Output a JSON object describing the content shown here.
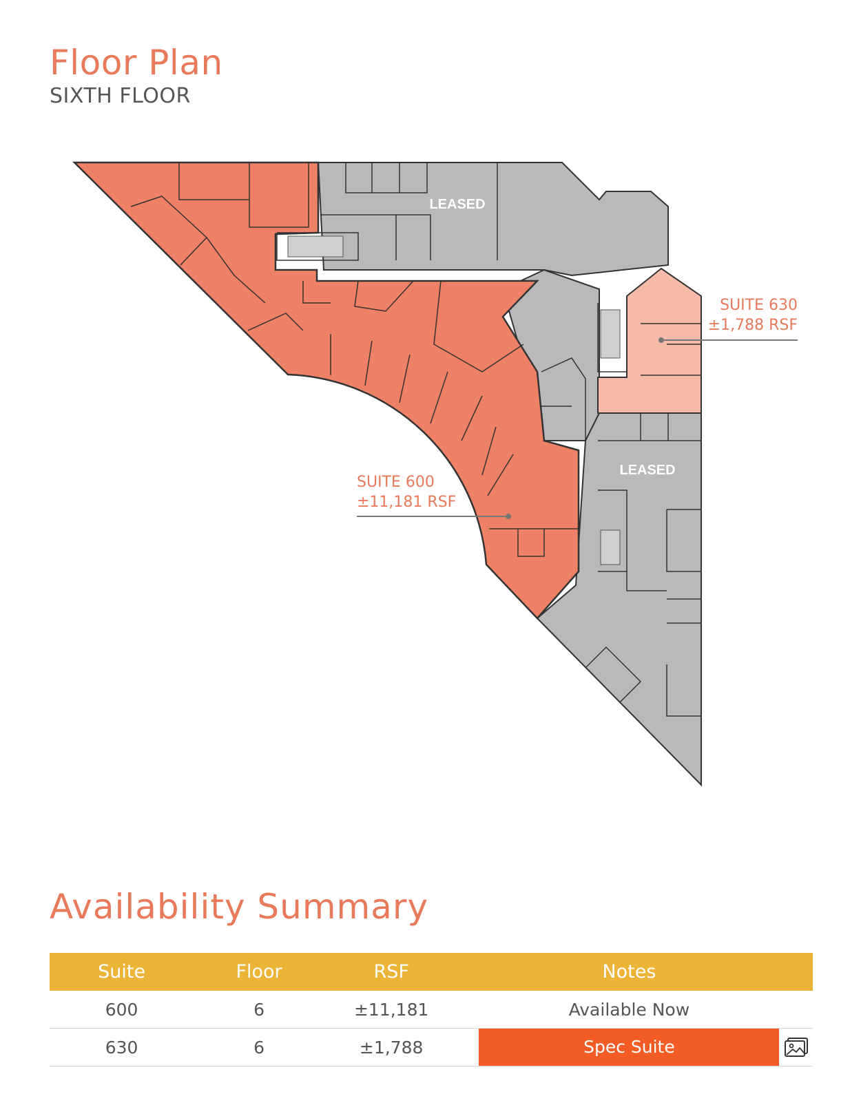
{
  "header": {
    "title": "Floor Plan",
    "subtitle": "SIXTH FLOOR"
  },
  "plan": {
    "leased_labels": [
      "LEASED",
      "LEASED"
    ],
    "suites": [
      {
        "name": "SUITE 630",
        "area": "±1,788 RSF"
      },
      {
        "name": "SUITE 600",
        "area": "±11,181 RSF"
      }
    ],
    "colors": {
      "available": "#ef8166",
      "spec": "#f7b9a8",
      "leased": "#b9b9bc",
      "wall": "#333333"
    }
  },
  "summary": {
    "title": "Availability Summary",
    "columns": [
      "Suite",
      "Floor",
      "RSF",
      "Notes"
    ],
    "rows": [
      {
        "suite": "600",
        "floor": "6",
        "rsf": "±11,181",
        "notes": "Available Now"
      },
      {
        "suite": "630",
        "floor": "6",
        "rsf": "±1,788",
        "notes": "Spec Suite",
        "icon": "image-gallery-icon"
      }
    ],
    "colors": {
      "header": "#ecb436",
      "highlight": "#f45c25"
    }
  }
}
